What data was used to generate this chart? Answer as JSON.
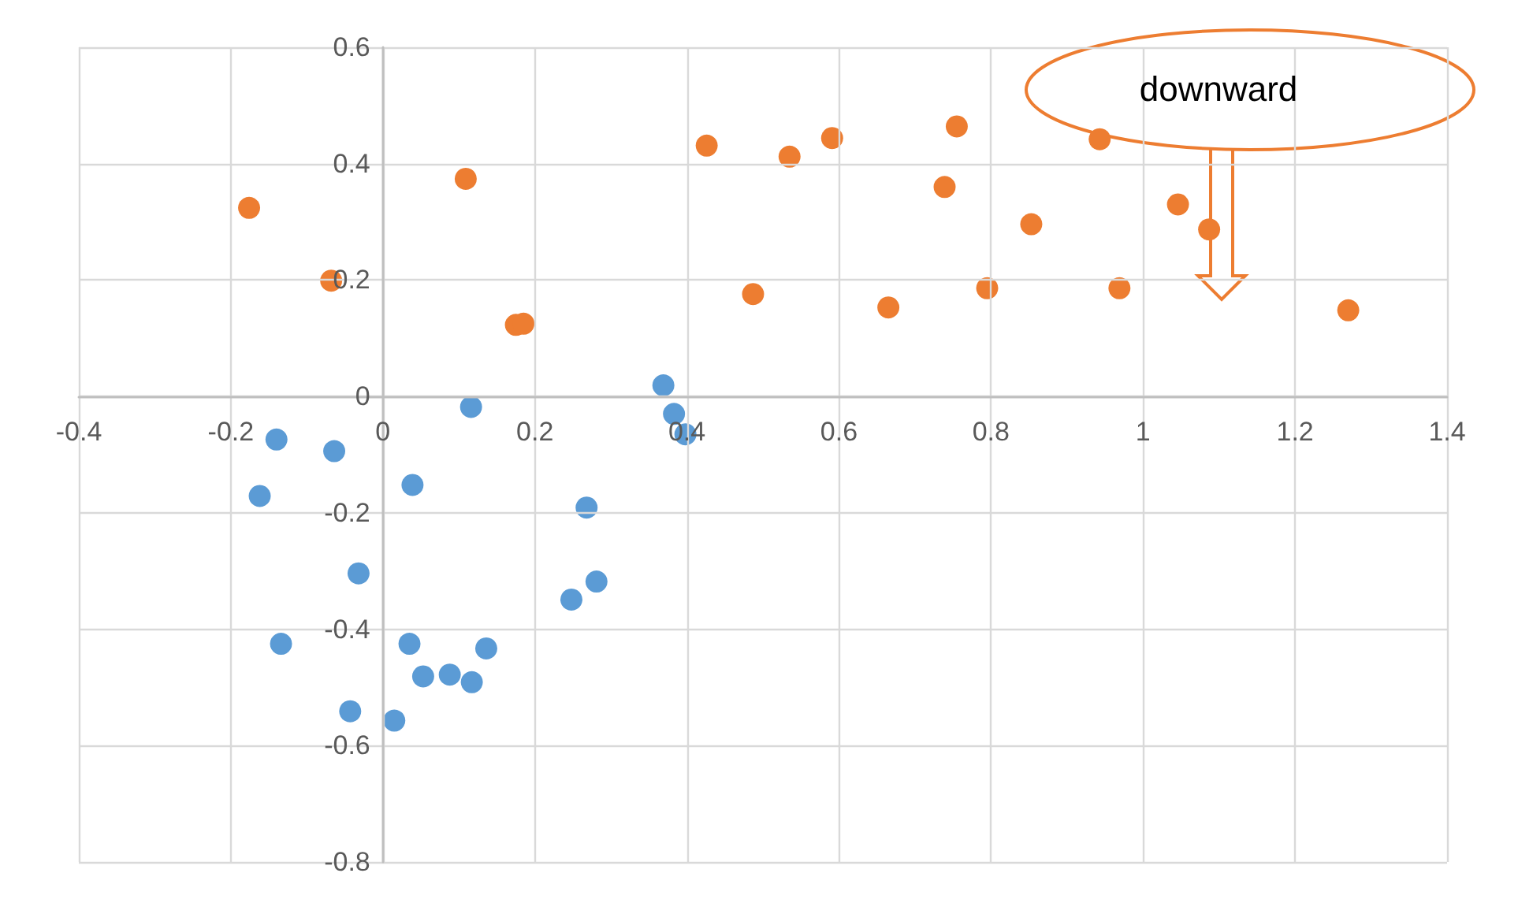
{
  "chart_data": {
    "type": "scatter",
    "series": [
      {
        "color": "#5b9bd5",
        "x": [
          -0.14,
          -0.162,
          -0.064,
          0.116,
          0.039,
          0.369,
          0.383,
          0.398,
          0.268,
          -0.032,
          0.281,
          0.248,
          -0.134,
          0.035,
          0.136,
          0.053,
          0.088,
          0.117,
          -0.043,
          0.015
        ],
        "values": [
          -0.074,
          -0.171,
          -0.094,
          -0.018,
          -0.152,
          0.019,
          -0.03,
          -0.065,
          -0.191,
          -0.304,
          -0.318,
          -0.349,
          -0.425,
          -0.425,
          -0.433,
          -0.481,
          -0.478,
          -0.491,
          -0.541,
          -0.557
        ]
      },
      {
        "color": "#ed7d31",
        "x": [
          -0.176,
          -0.068,
          0.109,
          0.175,
          0.185,
          0.426,
          0.535,
          0.591,
          0.487,
          0.755,
          0.739,
          0.853,
          0.665,
          0.795,
          0.969,
          1.046,
          1.087,
          0.943,
          1.27
        ],
        "values": [
          0.324,
          0.199,
          0.374,
          0.123,
          0.125,
          0.431,
          0.412,
          0.444,
          0.176,
          0.464,
          0.36,
          0.296,
          0.153,
          0.186,
          0.186,
          0.33,
          0.287,
          0.442,
          0.148
        ]
      }
    ],
    "xlim": [
      -0.4,
      1.4
    ],
    "xticks": [
      -0.4,
      -0.2,
      0,
      0.2,
      0.4,
      0.6,
      0.8,
      1,
      1.2,
      1.4
    ],
    "ylim": [
      -0.8,
      0.6
    ],
    "yticks": [
      -0.8,
      -0.6,
      -0.4,
      -0.2,
      0,
      0.2,
      0.4,
      0.6
    ],
    "grid": true,
    "marker": "circle",
    "annotations": [
      "downward"
    ]
  }
}
